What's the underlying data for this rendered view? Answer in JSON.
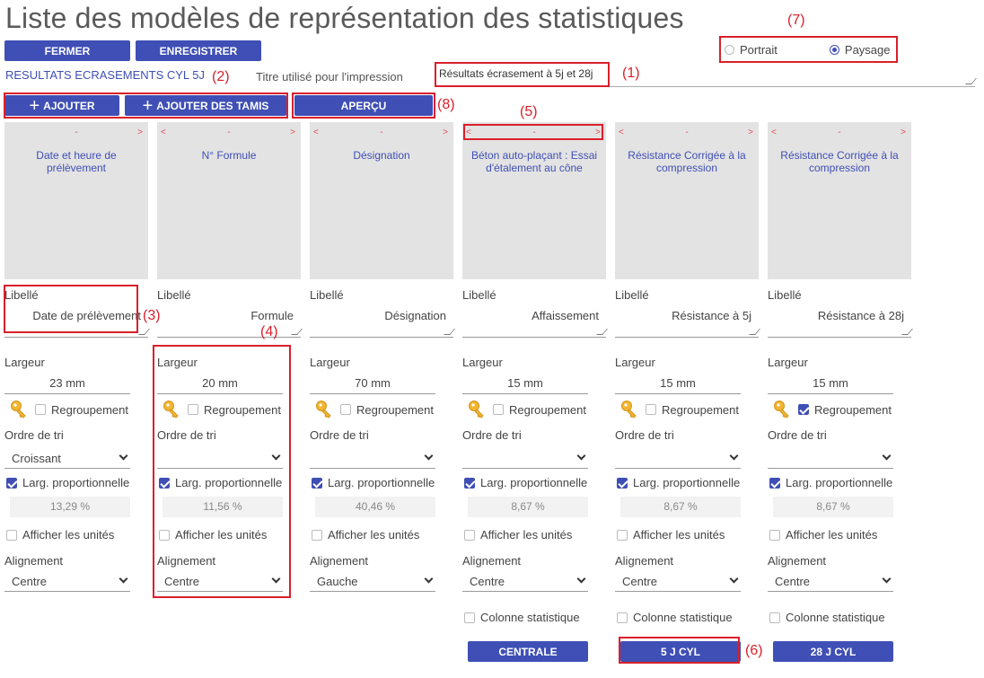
{
  "page_title": "Liste des modèles de représentation des statistiques",
  "toolbar": {
    "close_label": "FERMER",
    "save_label": "ENREGISTRER"
  },
  "orientation": {
    "portrait": "Portrait",
    "landscape": "Paysage",
    "selected": "Paysage"
  },
  "model_name": "RESULTATS ECRASEMENTS CYL 5J",
  "print_title": {
    "label": "Titre utilisé pour l'impression",
    "value": "Résultats écrasement à 5j et 28j"
  },
  "actions": {
    "add": "AJOUTER",
    "add_sieves": "AJOUTER DES TAMIS",
    "preview": "APERÇU"
  },
  "nav_arrows": {
    "left": "<",
    "middle": "-",
    "right": ">"
  },
  "field_labels": {
    "libelle": "Libellé",
    "largeur": "Largeur",
    "regroupement": "Regroupement",
    "ordre_tri": "Ordre de tri",
    "larg_prop": "Larg. proportionnelle",
    "afficher_unites": "Afficher les unités",
    "alignement": "Alignement",
    "colonne_stat": "Colonne statistique"
  },
  "columns": [
    {
      "header": "Date et heure de prélèvement",
      "libelle": "Date de prélèvement",
      "width": "23 mm",
      "regroupement": false,
      "sort": "Croissant",
      "larg_prop": true,
      "percent": "13,29 %",
      "units": false,
      "align": "Centre",
      "nav_left": false
    },
    {
      "header": "N° Formule",
      "libelle": "Formule",
      "width": "20 mm",
      "regroupement": false,
      "sort": "",
      "larg_prop": true,
      "percent": "11,56 %",
      "units": false,
      "align": "Centre",
      "nav_left": true
    },
    {
      "header": "Désignation",
      "libelle": "Désignation",
      "width": "70 mm",
      "regroupement": false,
      "sort": "",
      "larg_prop": true,
      "percent": "40,46 %",
      "units": false,
      "align": "Gauche",
      "nav_left": true
    },
    {
      "header": "Béton auto-plaçant : Essai d'étalement au cône",
      "libelle": "Affaissement",
      "width": "15 mm",
      "regroupement": false,
      "sort": "",
      "larg_prop": true,
      "percent": "8,67 %",
      "units": false,
      "align": "Centre",
      "nav_left": true,
      "stat_col": false,
      "stat_button": "CENTRALE"
    },
    {
      "header": "Résistance Corrigée à la compression",
      "libelle": "Résistance à 5j",
      "width": "15 mm",
      "regroupement": false,
      "sort": "",
      "larg_prop": true,
      "percent": "8,67 %",
      "units": false,
      "align": "Centre",
      "nav_left": true,
      "stat_col": false,
      "stat_button": "5 J CYL"
    },
    {
      "header": "Résistance Corrigée à la compression",
      "libelle": "Résistance à 28j",
      "width": "15 mm",
      "regroupement": true,
      "sort": "",
      "larg_prop": true,
      "percent": "8,67 %",
      "units": false,
      "align": "Centre",
      "nav_left": true,
      "stat_col": false,
      "stat_button": "28 J CYL"
    }
  ],
  "annotations": [
    "(1)",
    "(2)",
    "(3)",
    "(4)",
    "(5)",
    "(6)",
    "(7)",
    "(8)"
  ],
  "colors": {
    "primary": "#3f4fb5",
    "annotation": "#d9202b",
    "header_bg": "#e3e3e3"
  }
}
